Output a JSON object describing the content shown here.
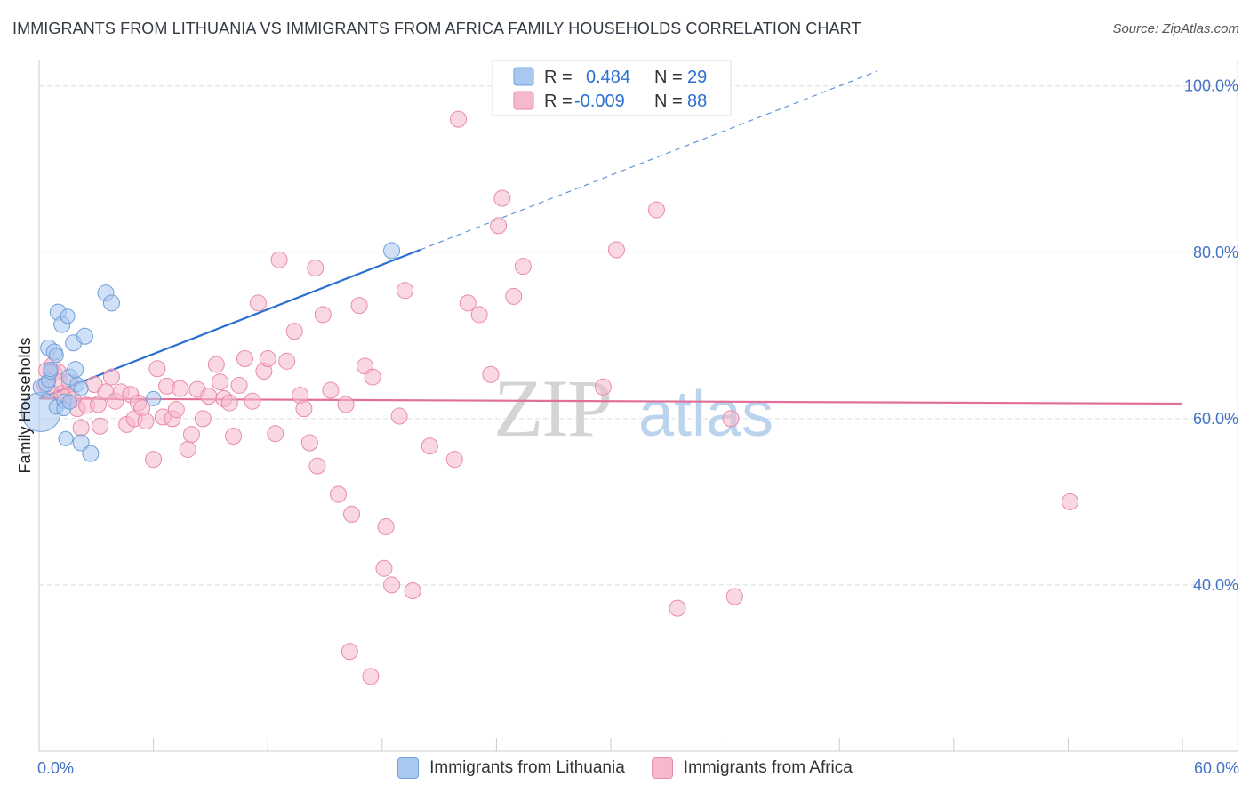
{
  "title": "IMMIGRANTS FROM LITHUANIA VS IMMIGRANTS FROM AFRICA FAMILY HOUSEHOLDS CORRELATION CHART",
  "source": "Source: ZipAtlas.com",
  "watermark": {
    "zip": "ZIP",
    "atlas": "atlas"
  },
  "colors": {
    "blue_fill": "#a9c8f0",
    "blue_stroke": "#6f9fd8",
    "blue_line": "#2b6fd1",
    "pink_fill": "#f6b8cc",
    "pink_stroke": "#e98aa8",
    "pink_line": "#e0709a",
    "tick_text": "#4472c4",
    "grid": "#dddddd"
  },
  "legend": {
    "rows": [
      {
        "r_label": "R =",
        "r_value": "0.484",
        "n_label": "N =",
        "n_value": "29",
        "series": "blue"
      },
      {
        "r_label": "R =",
        "r_value": "-0.009",
        "n_label": "N =",
        "n_value": "88",
        "series": "pink"
      }
    ]
  },
  "bottom_legend": [
    {
      "label": "Immigrants from Lithuania",
      "series": "blue"
    },
    {
      "label": "Immigrants from Africa",
      "series": "pink"
    }
  ],
  "chart_data": {
    "type": "scatter",
    "title": "IMMIGRANTS FROM LITHUANIA VS IMMIGRANTS FROM AFRICA FAMILY HOUSEHOLDS CORRELATION CHART",
    "xlabel": "",
    "ylabel": "Family Households",
    "xlim": [
      0,
      60
    ],
    "ylim": [
      20,
      102
    ],
    "x_tick_labels": [
      {
        "value": 0,
        "label": "0.0%"
      },
      {
        "value": 60,
        "label": "60.0%"
      }
    ],
    "y_tick_labels": [
      {
        "value": 100,
        "label": "100.0%"
      },
      {
        "value": 80,
        "label": "80.0%"
      },
      {
        "value": 60,
        "label": "60.0%"
      },
      {
        "value": 40,
        "label": "40.0%"
      }
    ],
    "series": [
      {
        "name": "Immigrants from Lithuania",
        "color": "blue",
        "R": 0.484,
        "N": 29,
        "trend": {
          "x0": 0,
          "y0": 62.4,
          "x1": 20,
          "y1": 80.3,
          "dash_to_x": 44,
          "dash_to_y": 101.8
        },
        "points": [
          [
            0.1,
            60.8,
            22
          ],
          [
            0.1,
            63.8,
            9
          ],
          [
            0.4,
            64.2,
            9
          ],
          [
            0.5,
            64.6,
            8
          ],
          [
            0.5,
            68.5,
            9
          ],
          [
            0.6,
            65.6,
            8
          ],
          [
            0.6,
            65.9,
            8
          ],
          [
            0.8,
            68.0,
            9
          ],
          [
            0.9,
            67.6,
            8
          ],
          [
            0.9,
            61.4,
            8
          ],
          [
            1.0,
            72.8,
            9
          ],
          [
            1.2,
            71.3,
            9
          ],
          [
            1.3,
            62.1,
            8
          ],
          [
            1.3,
            61.2,
            8
          ],
          [
            1.4,
            57.6,
            8
          ],
          [
            1.5,
            72.3,
            8
          ],
          [
            1.6,
            62.0,
            8
          ],
          [
            1.6,
            65.0,
            9
          ],
          [
            1.8,
            69.1,
            9
          ],
          [
            1.9,
            65.9,
            9
          ],
          [
            2.0,
            64.1,
            8
          ],
          [
            2.2,
            57.1,
            9
          ],
          [
            2.2,
            63.6,
            8
          ],
          [
            2.4,
            69.9,
            9
          ],
          [
            2.7,
            55.8,
            9
          ],
          [
            3.5,
            75.1,
            9
          ],
          [
            3.8,
            73.9,
            9
          ],
          [
            6.0,
            62.4,
            8
          ],
          [
            18.5,
            80.2,
            9
          ]
        ]
      },
      {
        "name": "Immigrants from Africa",
        "color": "pink",
        "R": -0.009,
        "N": 88,
        "trend": {
          "x0": 0,
          "y0": 62.4,
          "x1": 60,
          "y1": 61.8
        },
        "points": [
          [
            0.3,
            64.0
          ],
          [
            0.4,
            65.8
          ],
          [
            0.5,
            63.5
          ],
          [
            0.7,
            66.4
          ],
          [
            0.8,
            65.5
          ],
          [
            1.0,
            65.6
          ],
          [
            1.1,
            64.4
          ],
          [
            1.2,
            63.0
          ],
          [
            1.3,
            62.5
          ],
          [
            1.5,
            62.7
          ],
          [
            1.6,
            64.4
          ],
          [
            1.8,
            62.3
          ],
          [
            2.0,
            61.2
          ],
          [
            2.2,
            58.9
          ],
          [
            2.5,
            61.6
          ],
          [
            2.9,
            64.1
          ],
          [
            3.1,
            61.7
          ],
          [
            3.2,
            59.1
          ],
          [
            3.5,
            63.2
          ],
          [
            3.8,
            65.0
          ],
          [
            4.0,
            62.1
          ],
          [
            4.3,
            63.2
          ],
          [
            4.6,
            59.3
          ],
          [
            4.8,
            62.9
          ],
          [
            5.0,
            60.0
          ],
          [
            5.2,
            61.9
          ],
          [
            5.4,
            61.3
          ],
          [
            5.6,
            59.7
          ],
          [
            6.0,
            55.1
          ],
          [
            6.2,
            66.0
          ],
          [
            6.5,
            60.2
          ],
          [
            6.7,
            63.9
          ],
          [
            7.0,
            60.0
          ],
          [
            7.2,
            61.1
          ],
          [
            7.4,
            63.6
          ],
          [
            7.8,
            56.3
          ],
          [
            8.0,
            58.1
          ],
          [
            8.3,
            63.5
          ],
          [
            8.6,
            60.0
          ],
          [
            8.9,
            62.7
          ],
          [
            9.3,
            66.5
          ],
          [
            9.5,
            64.4
          ],
          [
            9.7,
            62.4
          ],
          [
            10.0,
            61.9
          ],
          [
            10.2,
            57.9
          ],
          [
            10.5,
            64.0
          ],
          [
            10.8,
            67.2
          ],
          [
            11.2,
            62.1
          ],
          [
            11.5,
            73.9
          ],
          [
            11.8,
            65.7
          ],
          [
            12.0,
            67.2
          ],
          [
            12.4,
            58.2
          ],
          [
            12.6,
            79.1
          ],
          [
            13.0,
            66.9
          ],
          [
            13.4,
            70.5
          ],
          [
            13.7,
            62.8
          ],
          [
            13.9,
            61.2
          ],
          [
            14.2,
            57.1
          ],
          [
            14.5,
            78.1
          ],
          [
            14.6,
            54.3
          ],
          [
            14.9,
            72.5
          ],
          [
            15.3,
            63.4
          ],
          [
            15.7,
            50.9
          ],
          [
            16.1,
            61.7
          ],
          [
            16.4,
            48.5
          ],
          [
            16.8,
            73.6
          ],
          [
            17.1,
            66.3
          ],
          [
            17.5,
            65.0
          ],
          [
            18.2,
            47.0
          ],
          [
            18.5,
            40.0
          ],
          [
            18.9,
            60.3
          ],
          [
            19.2,
            75.4
          ],
          [
            19.6,
            39.3
          ],
          [
            20.5,
            56.7
          ],
          [
            21.8,
            55.1
          ],
          [
            22.5,
            73.9
          ],
          [
            23.1,
            72.5
          ],
          [
            23.7,
            65.3
          ],
          [
            24.1,
            83.2
          ],
          [
            24.9,
            74.7
          ],
          [
            25.4,
            78.3
          ],
          [
            29.6,
            63.8
          ],
          [
            30.3,
            80.3
          ],
          [
            32.4,
            85.1
          ],
          [
            33.5,
            37.2
          ],
          [
            36.3,
            60.0
          ],
          [
            36.5,
            38.6
          ],
          [
            54.1,
            50.0
          ]
        ]
      },
      {
        "name": "Immigrants from Africa (outliers)",
        "color": "pink",
        "points": [
          [
            22.0,
            96.0
          ],
          [
            24.3,
            86.5
          ],
          [
            16.3,
            32.0
          ],
          [
            18.1,
            42.0
          ],
          [
            17.4,
            29.0
          ]
        ]
      }
    ]
  }
}
